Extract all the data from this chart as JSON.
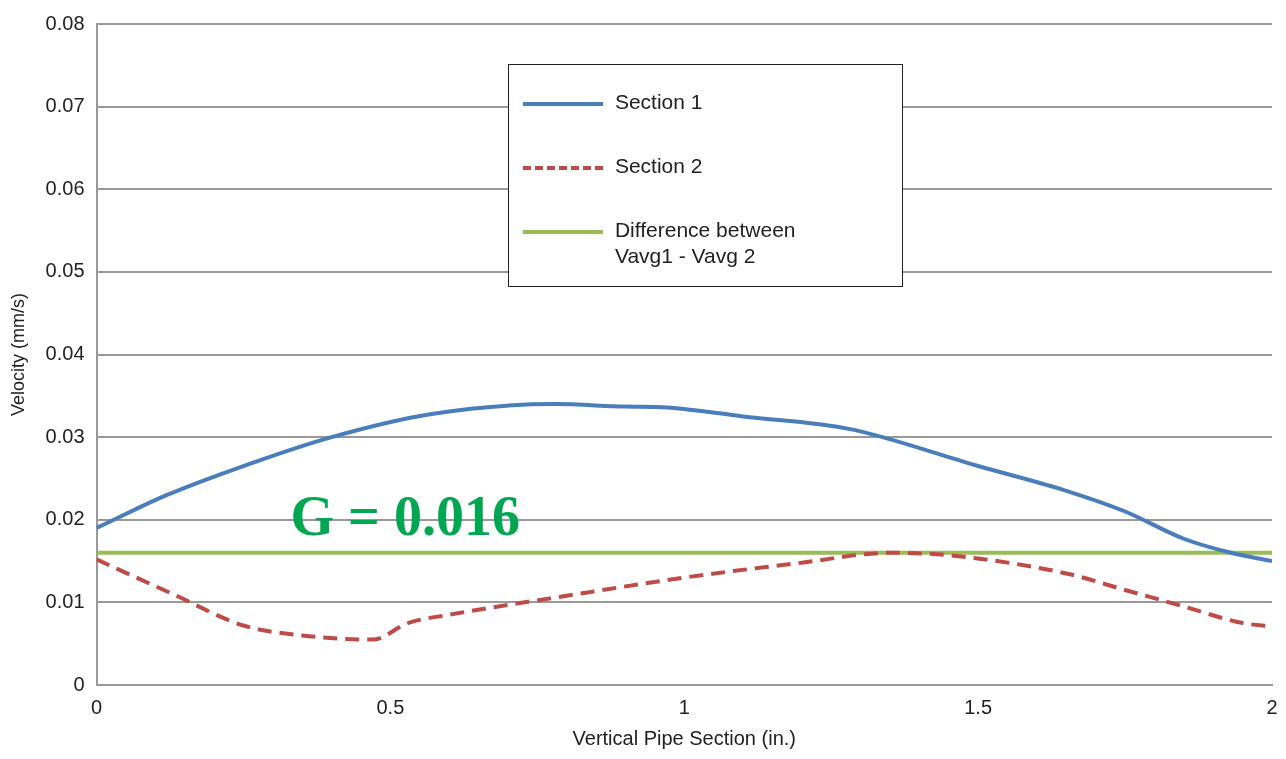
{
  "chart_data": {
    "type": "line",
    "xlabel": "Vertical Pipe Section (in.)",
    "ylabel": "Velocity (mm/s)",
    "xlim": [
      0,
      2
    ],
    "xticks": [
      0,
      0.5,
      1,
      1.5,
      2
    ],
    "ylim": [
      0,
      0.08
    ],
    "yticks": [
      0,
      0.01,
      0.02,
      0.03,
      0.04,
      0.05,
      0.06,
      0.07,
      0.08
    ],
    "grid": "y",
    "legend": "top",
    "marker": "none",
    "series": [
      {
        "name": "Section 1",
        "color": "#4a7ebb",
        "line_style": "solid",
        "x": [
          0,
          0.12,
          0.25,
          0.4,
          0.57,
          0.78,
          0.9,
          0.97,
          1.1,
          1.28,
          1.5,
          1.65,
          1.75,
          1.85,
          1.93,
          2
        ],
        "values": [
          0.019,
          0.023,
          0.0265,
          0.03,
          0.0328,
          0.034,
          0.0337,
          0.0336,
          0.0325,
          0.031,
          0.0265,
          0.0235,
          0.021,
          0.0177,
          0.016,
          0.015
        ]
      },
      {
        "name": "Section 2",
        "color": "#be4b48",
        "line_style": "dashed",
        "x": [
          0,
          0.13,
          0.25,
          0.35,
          0.47,
          0.53,
          0.6,
          0.8,
          1,
          1.2,
          1.35,
          1.45,
          1.65,
          1.75,
          1.85,
          1.95,
          2
        ],
        "values": [
          0.0152,
          0.011,
          0.0072,
          0.006,
          0.0055,
          0.0075,
          0.0085,
          0.0108,
          0.013,
          0.0148,
          0.016,
          0.0157,
          0.0135,
          0.0115,
          0.0095,
          0.0075,
          0.0071
        ]
      },
      {
        "name": "Difference between\nVavg1 - Vavg 2",
        "color": "#9bbb59",
        "line_style": "solid",
        "x": [
          0,
          2
        ],
        "values": [
          0.016,
          0.016
        ]
      }
    ],
    "annotations": [
      {
        "text": "G = 0.016",
        "x": 0.33,
        "y": 0.016
      }
    ]
  }
}
